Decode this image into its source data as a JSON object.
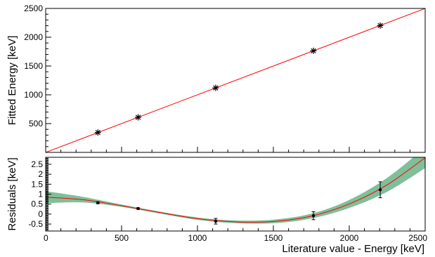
{
  "colors": {
    "fit_line": "#ff0000",
    "band": "#7fbf9a",
    "markers": "#000000",
    "frame": "#000000"
  },
  "chart_data": [
    {
      "type": "scatter",
      "xlabel": "",
      "ylabel": "Fitted Energy [keV]",
      "xlim": [
        0,
        2500
      ],
      "ylim": [
        0,
        2500
      ],
      "y_tick_labels": [
        "500",
        "1000",
        "1500",
        "2000",
        "2500"
      ],
      "grid": false,
      "fit": {
        "type": "line",
        "slope": 1,
        "intercept": 0
      },
      "series": [
        {
          "marker": "star",
          "x": [
            344,
            609,
            1120,
            1764,
            2204
          ],
          "y": [
            345,
            609,
            1120,
            1764,
            2203
          ]
        }
      ]
    },
    {
      "type": "scatter",
      "xlabel": "Literature value - Energy [keV]",
      "ylabel": "Residuals [keV]",
      "xlim": [
        0,
        2500
      ],
      "ylim": [
        -0.85,
        2.85
      ],
      "x_tick_labels": [
        "0",
        "500",
        "1000",
        "1500",
        "2000",
        "2500"
      ],
      "y_tick_labels": [
        "-0.5",
        "0",
        "0.5",
        "1",
        "1.5",
        "2",
        "2.5"
      ],
      "grid": false,
      "series": [
        {
          "marker": "dot",
          "x": [
            344,
            609,
            1120,
            1764,
            2204
          ],
          "y": [
            0.57,
            0.28,
            -0.36,
            -0.08,
            1.22
          ],
          "yerr": [
            0.05,
            0.04,
            0.14,
            0.2,
            0.4
          ]
        }
      ],
      "fit_curve": {
        "type": "line",
        "x": [
          0,
          250,
          500,
          750,
          1000,
          1250,
          1500,
          1750,
          2000,
          2250,
          2500
        ],
        "y": [
          0.85,
          0.72,
          0.42,
          0.08,
          -0.23,
          -0.39,
          -0.37,
          -0.1,
          0.51,
          1.47,
          2.83
        ]
      },
      "confidence_band": {
        "x": [
          0,
          250,
          500,
          750,
          1000,
          1250,
          1500,
          1750,
          2000,
          2250,
          2500
        ],
        "lower": [
          0.55,
          0.58,
          0.36,
          0.03,
          -0.29,
          -0.46,
          -0.46,
          -0.22,
          0.31,
          1.12,
          2.31
        ],
        "upper": [
          1.15,
          0.86,
          0.48,
          0.13,
          -0.17,
          -0.32,
          -0.28,
          0.02,
          0.71,
          1.82,
          3.35
        ]
      }
    }
  ]
}
